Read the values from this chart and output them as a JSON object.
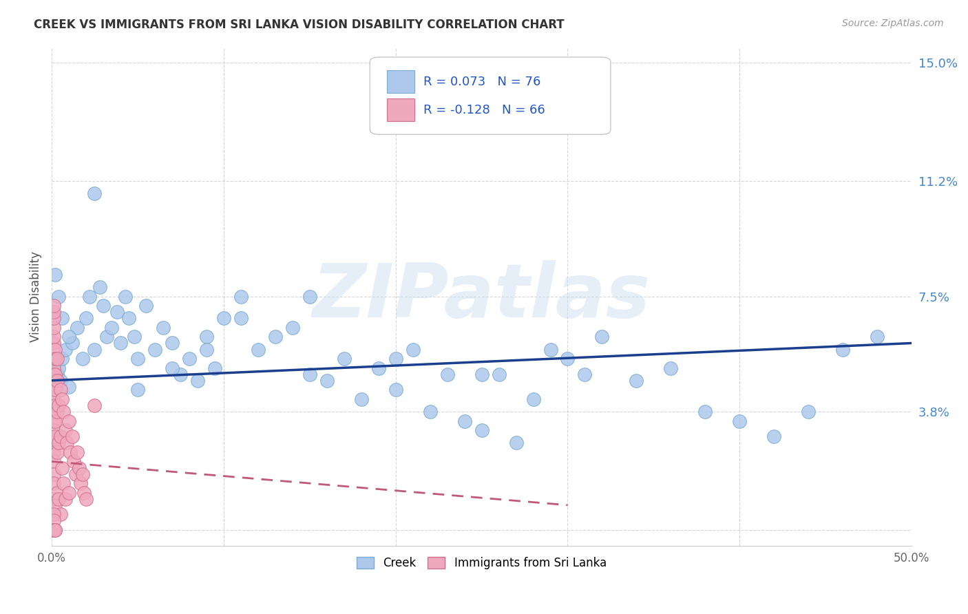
{
  "title": "CREEK VS IMMIGRANTS FROM SRI LANKA VISION DISABILITY CORRELATION CHART",
  "source": "Source: ZipAtlas.com",
  "ylabel": "Vision Disability",
  "xlim": [
    0.0,
    0.5
  ],
  "ylim": [
    -0.005,
    0.155
  ],
  "yticks": [
    0.0,
    0.038,
    0.075,
    0.112,
    0.15
  ],
  "ytick_labels": [
    "",
    "3.8%",
    "7.5%",
    "11.2%",
    "15.0%"
  ],
  "xtick_positions": [
    0.0,
    0.5
  ],
  "xtick_labels": [
    "0.0%",
    "50.0%"
  ],
  "creek_color": "#adc8eb",
  "creek_edge": "#7aaad0",
  "sri_lanka_color": "#f0a8be",
  "sri_lanka_edge": "#d07090",
  "trend_creek_color": "#1a3f8f",
  "trend_sri_color": "#c05878",
  "background_color": "#ffffff",
  "watermark": "ZIPatlas",
  "r_creek": 0.073,
  "n_creek": 76,
  "r_sri": -0.128,
  "n_sri": 66,
  "creek_trend_x": [
    0.0,
    0.5
  ],
  "creek_trend_y": [
    0.048,
    0.06
  ],
  "sri_trend_x": [
    0.0,
    0.3
  ],
  "sri_trend_y": [
    0.022,
    0.008
  ],
  "creek_x": [
    0.001,
    0.002,
    0.003,
    0.004,
    0.005,
    0.006,
    0.008,
    0.01,
    0.012,
    0.015,
    0.018,
    0.02,
    0.022,
    0.025,
    0.028,
    0.03,
    0.032,
    0.035,
    0.038,
    0.04,
    0.043,
    0.045,
    0.048,
    0.05,
    0.055,
    0.06,
    0.065,
    0.07,
    0.075,
    0.08,
    0.085,
    0.09,
    0.095,
    0.1,
    0.11,
    0.12,
    0.13,
    0.14,
    0.15,
    0.16,
    0.17,
    0.18,
    0.19,
    0.2,
    0.21,
    0.22,
    0.23,
    0.24,
    0.25,
    0.26,
    0.27,
    0.28,
    0.29,
    0.3,
    0.31,
    0.32,
    0.34,
    0.36,
    0.38,
    0.4,
    0.42,
    0.44,
    0.46,
    0.48,
    0.002,
    0.004,
    0.006,
    0.01,
    0.025,
    0.05,
    0.07,
    0.09,
    0.11,
    0.15,
    0.2,
    0.25
  ],
  "creek_y": [
    0.05,
    0.048,
    0.05,
    0.052,
    0.048,
    0.055,
    0.058,
    0.046,
    0.06,
    0.065,
    0.055,
    0.068,
    0.075,
    0.058,
    0.078,
    0.072,
    0.062,
    0.065,
    0.07,
    0.06,
    0.075,
    0.068,
    0.062,
    0.055,
    0.072,
    0.058,
    0.065,
    0.06,
    0.05,
    0.055,
    0.048,
    0.062,
    0.052,
    0.068,
    0.075,
    0.058,
    0.062,
    0.065,
    0.05,
    0.048,
    0.055,
    0.042,
    0.052,
    0.055,
    0.058,
    0.038,
    0.05,
    0.035,
    0.032,
    0.05,
    0.028,
    0.042,
    0.058,
    0.055,
    0.05,
    0.062,
    0.048,
    0.052,
    0.038,
    0.035,
    0.03,
    0.038,
    0.058,
    0.062,
    0.082,
    0.075,
    0.068,
    0.062,
    0.108,
    0.045,
    0.052,
    0.058,
    0.068,
    0.075,
    0.045,
    0.05
  ],
  "sri_x": [
    0.001,
    0.001,
    0.001,
    0.001,
    0.001,
    0.001,
    0.001,
    0.001,
    0.001,
    0.001,
    0.001,
    0.001,
    0.001,
    0.001,
    0.001,
    0.002,
    0.002,
    0.002,
    0.002,
    0.002,
    0.002,
    0.003,
    0.003,
    0.003,
    0.003,
    0.004,
    0.004,
    0.004,
    0.005,
    0.005,
    0.005,
    0.006,
    0.006,
    0.007,
    0.007,
    0.008,
    0.008,
    0.009,
    0.01,
    0.01,
    0.011,
    0.012,
    0.013,
    0.014,
    0.015,
    0.016,
    0.017,
    0.018,
    0.019,
    0.02,
    0.001,
    0.001,
    0.002,
    0.001,
    0.002,
    0.001,
    0.003,
    0.025,
    0.001,
    0.001,
    0.001,
    0.001,
    0.001,
    0.002,
    0.001,
    0.002
  ],
  "sri_y": [
    0.055,
    0.052,
    0.05,
    0.048,
    0.045,
    0.042,
    0.038,
    0.035,
    0.032,
    0.028,
    0.025,
    0.022,
    0.018,
    0.015,
    0.01,
    0.05,
    0.045,
    0.04,
    0.035,
    0.03,
    0.008,
    0.048,
    0.038,
    0.025,
    0.012,
    0.04,
    0.028,
    0.01,
    0.045,
    0.03,
    0.005,
    0.042,
    0.02,
    0.038,
    0.015,
    0.032,
    0.01,
    0.028,
    0.035,
    0.012,
    0.025,
    0.03,
    0.022,
    0.018,
    0.025,
    0.02,
    0.015,
    0.018,
    0.012,
    0.01,
    0.06,
    0.062,
    0.058,
    0.065,
    0.055,
    0.068,
    0.055,
    0.04,
    0.07,
    0.072,
    0.005,
    0.003,
    0.0,
    0.0,
    0.0,
    0.0
  ]
}
